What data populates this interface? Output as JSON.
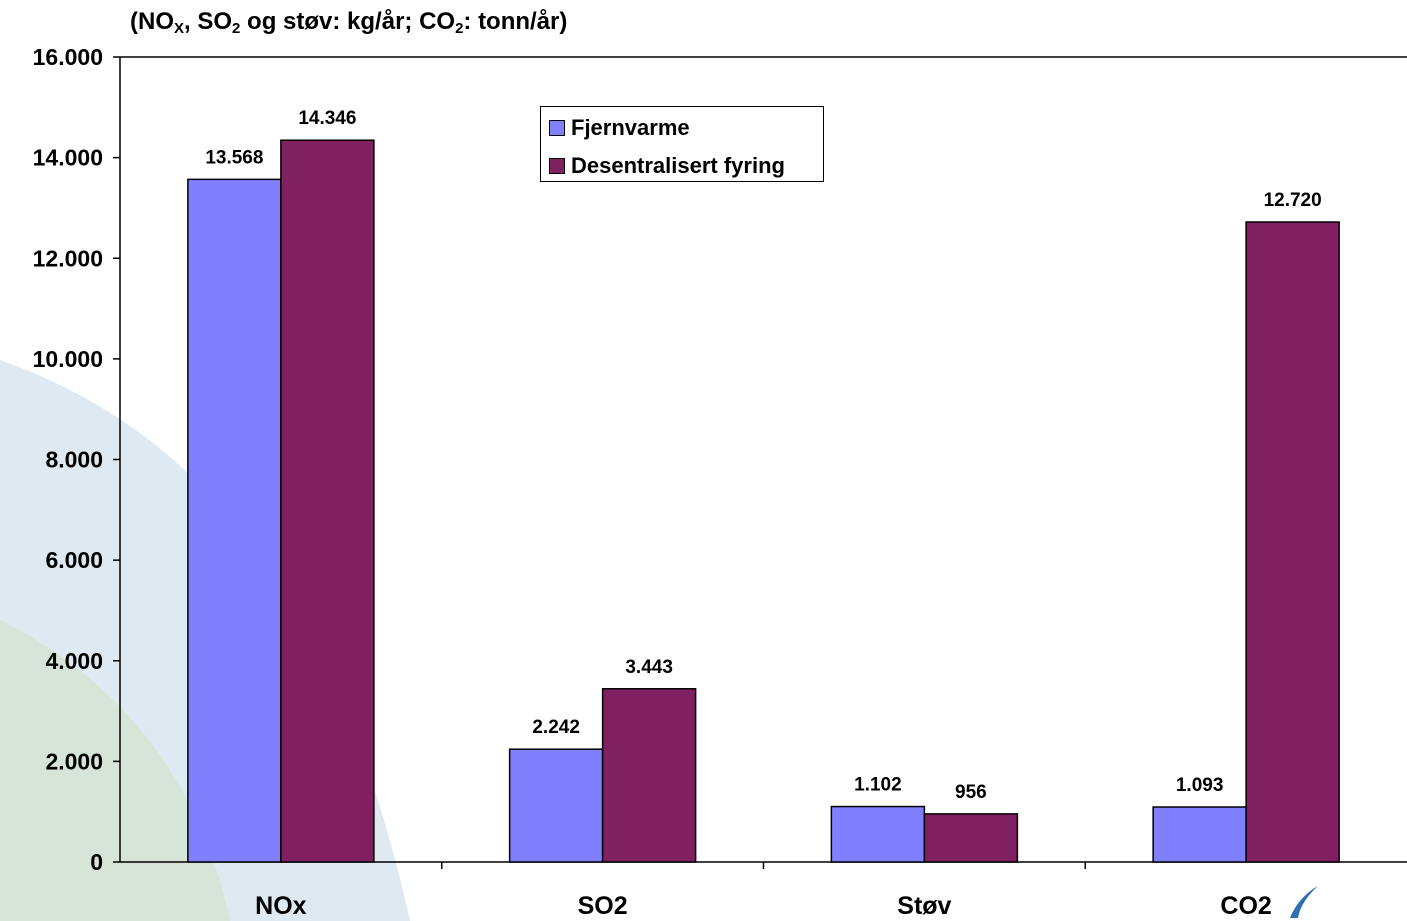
{
  "title": {
    "part1": "(NO",
    "sub1": "X",
    "part2": ", SO",
    "sub2": "2",
    "part3": " og støv: kg/år; CO",
    "sub3": "2",
    "part4": ": tonn/år)"
  },
  "legend": [
    {
      "label": "Fjernvarme",
      "color": "#8080ff"
    },
    {
      "label": "Desentralisert fyring",
      "color": "#802060"
    }
  ],
  "chart_data": {
    "type": "bar",
    "categories": [
      "NOx",
      "SO2",
      "Støv",
      "CO2"
    ],
    "series": [
      {
        "name": "Fjernvarme",
        "values": [
          13568,
          2242,
          1102,
          1093
        ],
        "labels": [
          "13.568",
          "2.242",
          "1.102",
          "1.093"
        ],
        "color": "#8080ff"
      },
      {
        "name": "Desentralisert fyring",
        "values": [
          14346,
          3443,
          956,
          12720
        ],
        "labels": [
          "14.346",
          "3.443",
          "956",
          "12.720"
        ],
        "color": "#802060"
      }
    ],
    "ylim": [
      0,
      16000
    ],
    "yticks": [
      0,
      2000,
      4000,
      6000,
      8000,
      10000,
      12000,
      14000,
      16000
    ],
    "ytick_labels": [
      "0",
      "2.000",
      "4.000",
      "6.000",
      "8.000",
      "10.000",
      "12.000",
      "14.000",
      "16.000"
    ],
    "legend_position": "top-center",
    "grid": false,
    "xlabel": "",
    "ylabel": ""
  }
}
